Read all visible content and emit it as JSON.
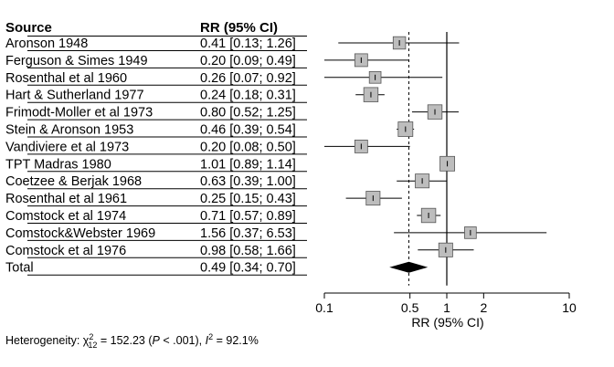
{
  "chart_data": {
    "type": "forest",
    "headers": {
      "study": "Source",
      "estimate": "RR (95% CI)"
    },
    "xlabel": "RR (95% CI)",
    "xscale": "log",
    "xlim": [
      0.1,
      10
    ],
    "xticks": [
      {
        "value": 0.1,
        "label": "0.1"
      },
      {
        "value": 0.5,
        "label": "0.5"
      },
      {
        "value": 1,
        "label": "1"
      },
      {
        "value": 2,
        "label": "2"
      },
      {
        "value": 10,
        "label": "10"
      }
    ],
    "null_line": 1,
    "summary_line": 0.49,
    "studies": [
      {
        "name": "Aronson 1948",
        "rr": 0.41,
        "lower": 0.13,
        "upper": 1.26,
        "text": "0.41 [0.13; 1.26]",
        "weight": 0.7
      },
      {
        "name": "Ferguson & Simes 1949",
        "rr": 0.2,
        "lower": 0.09,
        "upper": 0.49,
        "text": "0.20 [0.09; 0.49]",
        "weight": 0.75
      },
      {
        "name": "Rosenthal et al 1960",
        "rr": 0.26,
        "lower": 0.07,
        "upper": 0.92,
        "text": "0.26 [0.07; 0.92]",
        "weight": 0.6
      },
      {
        "name": "Hart & Sutherland 1977",
        "rr": 0.24,
        "lower": 0.18,
        "upper": 0.31,
        "text": "0.24 [0.18; 0.31]",
        "weight": 0.95
      },
      {
        "name": "Frimodt-Moller et al 1973",
        "rr": 0.8,
        "lower": 0.52,
        "upper": 1.25,
        "text": "0.80 [0.52; 1.25]",
        "weight": 0.95
      },
      {
        "name": "Stein & Aronson 1953",
        "rr": 0.46,
        "lower": 0.39,
        "upper": 0.54,
        "text": "0.46 [0.39; 0.54]",
        "weight": 1.0
      },
      {
        "name": "Vandiviere et al 1973",
        "rr": 0.2,
        "lower": 0.08,
        "upper": 0.5,
        "text": "0.20 [0.08; 0.50]",
        "weight": 0.75
      },
      {
        "name": "TPT Madras 1980",
        "rr": 1.01,
        "lower": 0.89,
        "upper": 1.14,
        "text": "1.01 [0.89; 1.14]",
        "weight": 1.0
      },
      {
        "name": "Coetzee & Berjak 1968",
        "rr": 0.63,
        "lower": 0.39,
        "upper": 1.0,
        "text": "0.63 [0.39; 1.00]",
        "weight": 0.9
      },
      {
        "name": "Rosenthal et al 1961",
        "rr": 0.25,
        "lower": 0.15,
        "upper": 0.43,
        "text": "0.25 [0.15; 0.43]",
        "weight": 0.9
      },
      {
        "name": "Comstock et al 1974",
        "rr": 0.71,
        "lower": 0.57,
        "upper": 0.89,
        "text": "0.71 [0.57; 0.89]",
        "weight": 0.95
      },
      {
        "name": "Comstock&Webster 1969",
        "rr": 1.56,
        "lower": 0.37,
        "upper": 6.53,
        "text": "1.56 [0.37; 6.53]",
        "weight": 0.6
      },
      {
        "name": "Comstock et al 1976",
        "rr": 0.98,
        "lower": 0.58,
        "upper": 1.66,
        "text": "0.98 [0.58; 1.66]",
        "weight": 0.9
      }
    ],
    "total": {
      "name": "Total",
      "rr": 0.49,
      "lower": 0.34,
      "upper": 0.7,
      "text": "0.49 [0.34; 0.70]"
    },
    "heterogeneity": {
      "label": "Heterogeneity:",
      "chi_symbol": "χ",
      "chi_sup": "2",
      "chi_sub": "12",
      "chi_value": "= 152.23",
      "p_open": "(",
      "p_symbol": "P",
      "p_value": "< .001),",
      "i_symbol": "I",
      "i_sup": "2",
      "i_value": "= 92.1%"
    },
    "colors": {
      "box_fill": "#bdbdbd",
      "line": "#000000",
      "diamond": "#000000"
    }
  }
}
